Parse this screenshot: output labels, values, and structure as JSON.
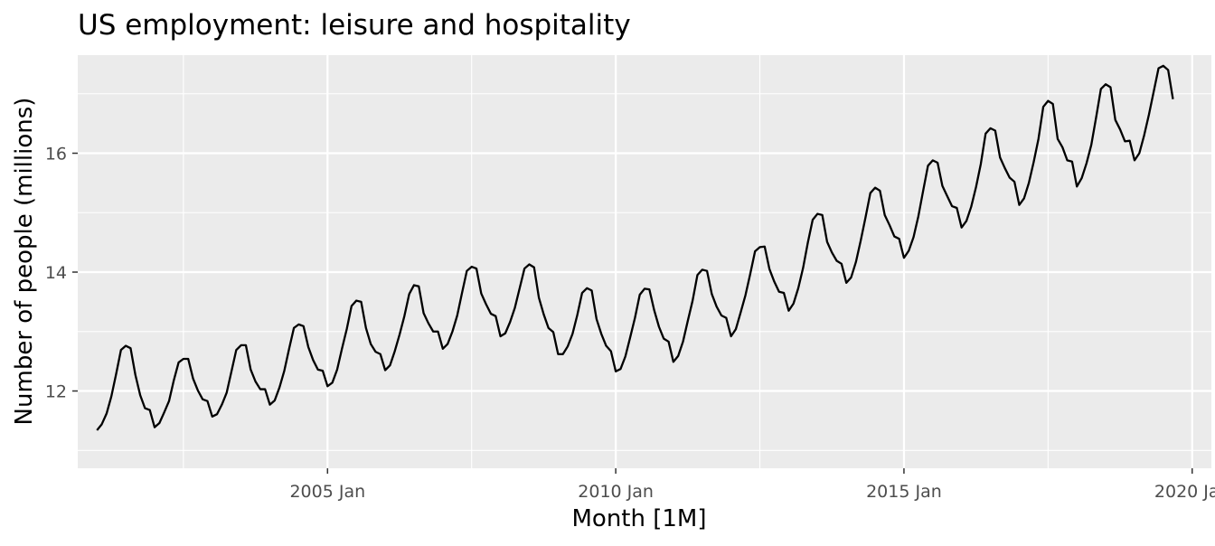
{
  "chart_data": {
    "type": "line",
    "title": "US employment: leisure and hospitality",
    "xlabel": "Month [1M]",
    "ylabel": "Number of people (millions)",
    "x_ticks": [
      "2005 Jan",
      "2010 Jan",
      "2015 Jan",
      "2020 Jan"
    ],
    "y_ticks": [
      "12",
      "14",
      "16"
    ],
    "y_tick_values": [
      12,
      14,
      16
    ],
    "ylim": [
      10.7,
      17.65
    ],
    "xlim": [
      "2000-09",
      "2020-05"
    ],
    "grid": true,
    "x_start": "2001-01",
    "series": [
      {
        "color": "#000000",
        "values": [
          11.34,
          11.44,
          11.62,
          11.91,
          12.29,
          12.69,
          12.76,
          12.72,
          12.27,
          11.93,
          11.71,
          11.68,
          11.39,
          11.46,
          11.64,
          11.83,
          12.18,
          12.48,
          12.54,
          12.54,
          12.21,
          12.01,
          11.86,
          11.83,
          11.57,
          11.61,
          11.77,
          11.97,
          12.33,
          12.69,
          12.77,
          12.77,
          12.36,
          12.16,
          12.03,
          12.03,
          11.77,
          11.84,
          12.06,
          12.34,
          12.71,
          13.06,
          13.12,
          13.09,
          12.74,
          12.52,
          12.36,
          12.34,
          12.08,
          12.14,
          12.36,
          12.71,
          13.04,
          13.43,
          13.52,
          13.5,
          13.06,
          12.79,
          12.66,
          12.62,
          12.35,
          12.43,
          12.67,
          12.95,
          13.26,
          13.63,
          13.78,
          13.76,
          13.31,
          13.14,
          13.0,
          13.0,
          12.71,
          12.79,
          13.0,
          13.27,
          13.65,
          14.02,
          14.09,
          14.06,
          13.64,
          13.46,
          13.3,
          13.26,
          12.92,
          12.97,
          13.16,
          13.4,
          13.73,
          14.06,
          14.13,
          14.08,
          13.57,
          13.29,
          13.06,
          12.99,
          12.62,
          12.62,
          12.75,
          12.96,
          13.28,
          13.65,
          13.73,
          13.69,
          13.21,
          12.96,
          12.76,
          12.67,
          12.33,
          12.37,
          12.58,
          12.9,
          13.23,
          13.62,
          13.72,
          13.71,
          13.36,
          13.08,
          12.88,
          12.83,
          12.49,
          12.59,
          12.83,
          13.18,
          13.52,
          13.95,
          14.04,
          14.02,
          13.63,
          13.42,
          13.27,
          13.23,
          12.92,
          13.04,
          13.32,
          13.61,
          13.97,
          14.35,
          14.42,
          14.43,
          14.05,
          13.84,
          13.67,
          13.65,
          13.35,
          13.47,
          13.73,
          14.07,
          14.5,
          14.88,
          14.98,
          14.96,
          14.51,
          14.33,
          14.19,
          14.14,
          13.82,
          13.91,
          14.17,
          14.53,
          14.92,
          15.33,
          15.42,
          15.37,
          14.96,
          14.79,
          14.6,
          14.56,
          14.24,
          14.36,
          14.59,
          14.94,
          15.37,
          15.79,
          15.88,
          15.84,
          15.45,
          15.28,
          15.11,
          15.08,
          14.75,
          14.86,
          15.1,
          15.43,
          15.82,
          16.33,
          16.42,
          16.38,
          15.93,
          15.75,
          15.59,
          15.52,
          15.13,
          15.24,
          15.5,
          15.85,
          16.24,
          16.78,
          16.88,
          16.83,
          16.24,
          16.1,
          15.88,
          15.86,
          15.44,
          15.58,
          15.83,
          16.14,
          16.6,
          17.08,
          17.16,
          17.11,
          16.56,
          16.4,
          16.2,
          16.21,
          15.88,
          16.0,
          16.3,
          16.65,
          17.04,
          17.43,
          17.47,
          17.4,
          16.91
        ]
      }
    ]
  }
}
